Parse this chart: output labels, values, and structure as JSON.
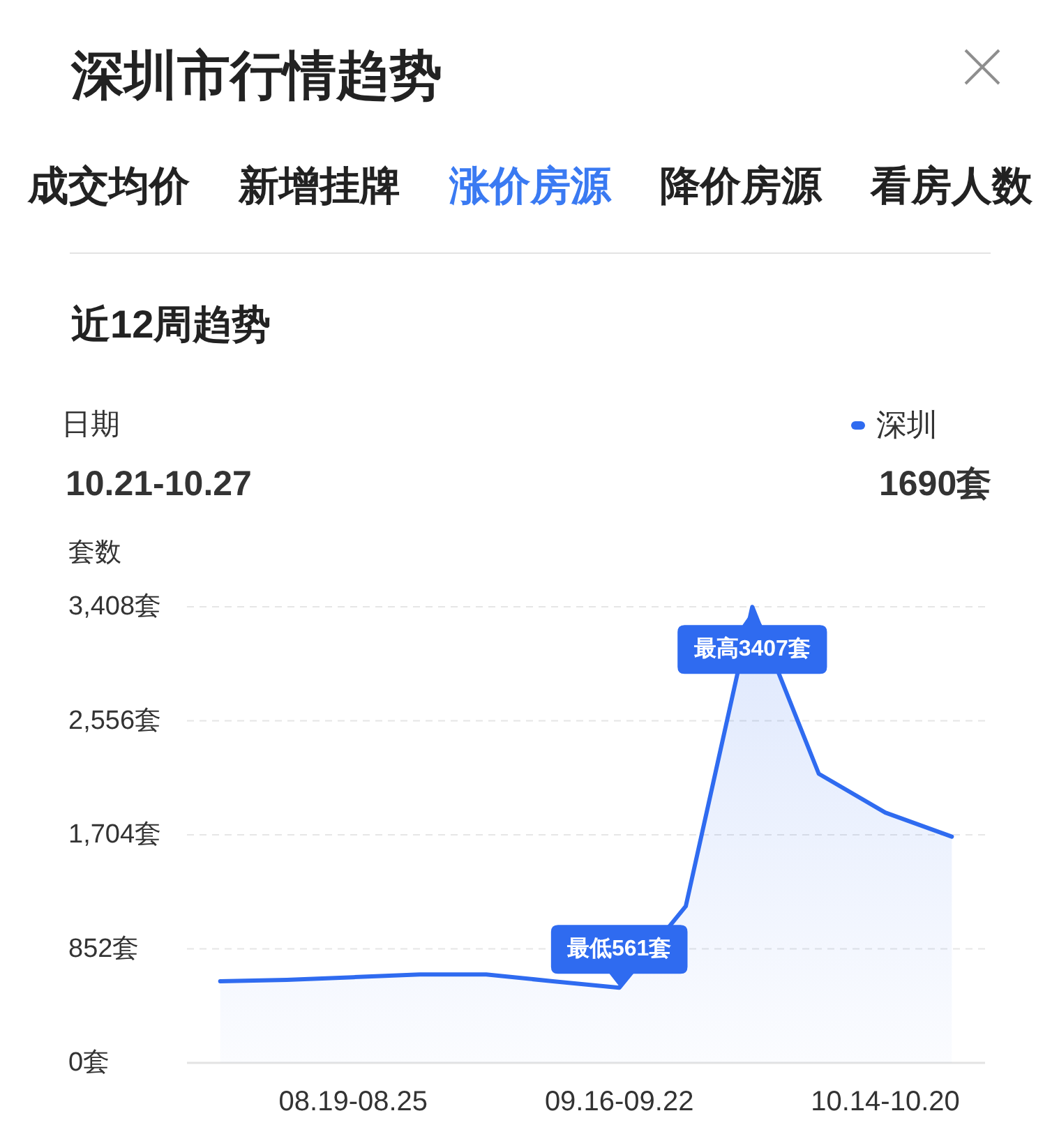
{
  "chart_data": {
    "type": "area",
    "title": "深圳市行情趋势",
    "subtitle": "近12周趋势",
    "ylabel": "套数",
    "categories": [
      null,
      null,
      "08.19-08.25",
      null,
      null,
      null,
      "09.16-09.22",
      null,
      null,
      null,
      "10.14-10.20",
      null
    ],
    "series": [
      {
        "name": "深圳",
        "color": "#2f6bf0",
        "values": [
          610,
          620,
          640,
          660,
          660,
          610,
          561,
          1170,
          3407,
          2160,
          1870,
          1690
        ],
        "value_labels": [
          null,
          null,
          null,
          null,
          null,
          null,
          "最低561套",
          null,
          "最高3407套",
          null,
          null,
          null
        ]
      }
    ],
    "ylim": [
      0,
      3408
    ],
    "yticks": [
      {
        "value": 0,
        "label": "0套"
      },
      {
        "value": 852,
        "label": "852套"
      },
      {
        "value": 1704,
        "label": "1,704套"
      },
      {
        "value": 2556,
        "label": "2,556套"
      },
      {
        "value": 3408,
        "label": "3,408套"
      }
    ],
    "grid": "y",
    "legend": "top right",
    "annotations": [
      "成交均价",
      "新增挂牌",
      "涨价房源",
      "降价房源",
      "看房人数",
      "日期",
      "10.21-10.27",
      "1690套"
    ]
  }
}
